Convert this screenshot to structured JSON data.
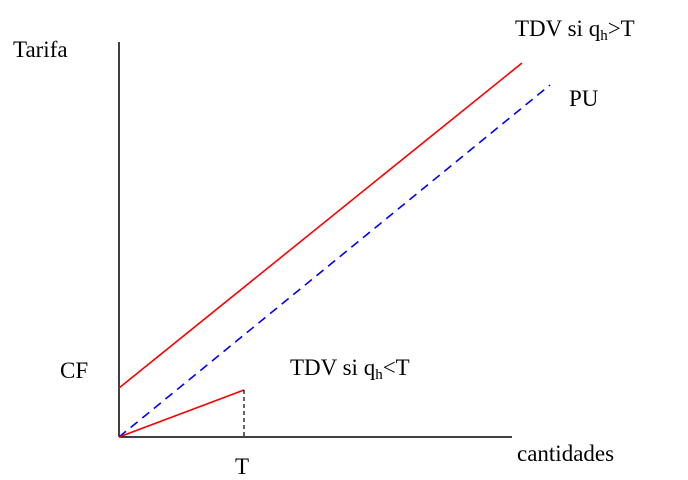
{
  "diagram": {
    "y_axis_label": "Tarifa",
    "x_axis_label": "cantidades",
    "cf_label": "CF",
    "t_label": "T",
    "pu_label": "PU",
    "tdv_high": {
      "prefix": "TDV si q",
      "sub": "h",
      "suffix": ">T"
    },
    "tdv_low": {
      "prefix": "TDV si q",
      "sub": "h",
      "suffix": "<T"
    },
    "colors": {
      "axes": "#000000",
      "tdv_lines": "#ff0000",
      "pu_line": "#0000ff",
      "guide": "#000000"
    }
  }
}
